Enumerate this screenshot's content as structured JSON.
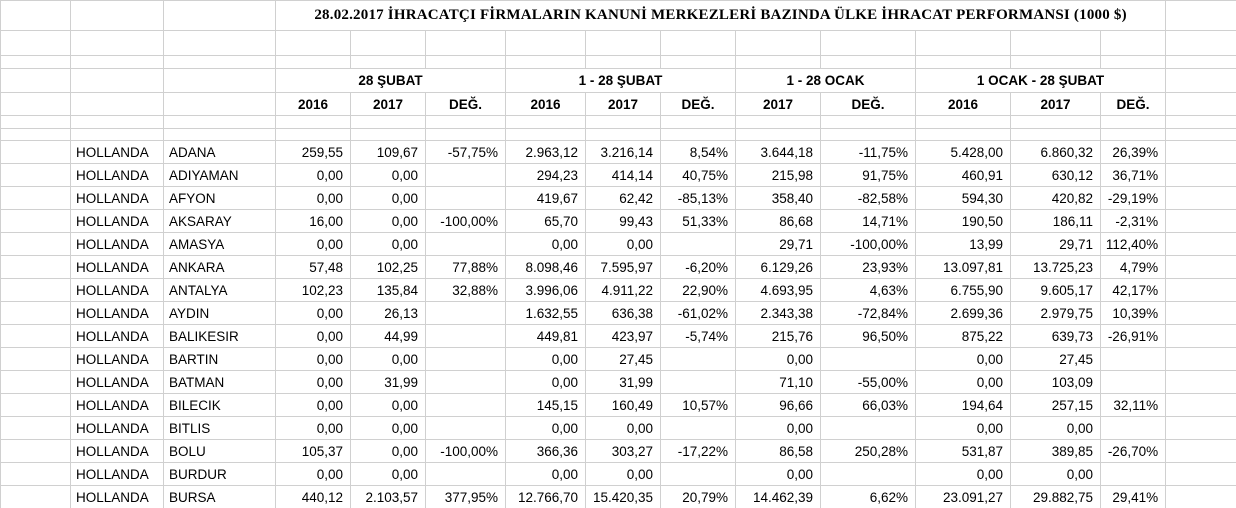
{
  "title": "28.02.2017 İHRACATÇI FİRMALARIN KANUNİ MERKEZLERİ BAZINDA ÜLKE İHRACAT PERFORMANSI  (1000 $)",
  "colors": {
    "background": "#ffffff",
    "gridline": "#d0d0d0",
    "text": "#000000"
  },
  "table": {
    "period_headers": [
      "28 ŞUBAT",
      "1 - 28 ŞUBAT",
      "1 - 28 OCAK",
      "1 OCAK  -  28 ŞUBAT"
    ],
    "year_headers": [
      "2016",
      "2017",
      "DEĞ.",
      "2016",
      "2017",
      "DEĞ.",
      "2017",
      "DEĞ.",
      "2016",
      "2017",
      "DEĞ."
    ],
    "rows": [
      {
        "country": "HOLLANDA",
        "city": "ADANA",
        "values": [
          "259,55",
          "109,67",
          "-57,75%",
          "2.963,12",
          "3.216,14",
          "8,54%",
          "3.644,18",
          "-11,75%",
          "5.428,00",
          "6.860,32",
          "26,39%"
        ]
      },
      {
        "country": "HOLLANDA",
        "city": "ADIYAMAN",
        "values": [
          "0,00",
          "0,00",
          "",
          "294,23",
          "414,14",
          "40,75%",
          "215,98",
          "91,75%",
          "460,91",
          "630,12",
          "36,71%"
        ]
      },
      {
        "country": "HOLLANDA",
        "city": "AFYON",
        "values": [
          "0,00",
          "0,00",
          "",
          "419,67",
          "62,42",
          "-85,13%",
          "358,40",
          "-82,58%",
          "594,30",
          "420,82",
          "-29,19%"
        ]
      },
      {
        "country": "HOLLANDA",
        "city": "AKSARAY",
        "values": [
          "16,00",
          "0,00",
          "-100,00%",
          "65,70",
          "99,43",
          "51,33%",
          "86,68",
          "14,71%",
          "190,50",
          "186,11",
          "-2,31%"
        ]
      },
      {
        "country": "HOLLANDA",
        "city": "AMASYA",
        "values": [
          "0,00",
          "0,00",
          "",
          "0,00",
          "0,00",
          "",
          "29,71",
          "-100,00%",
          "13,99",
          "29,71",
          "112,40%"
        ]
      },
      {
        "country": "HOLLANDA",
        "city": "ANKARA",
        "values": [
          "57,48",
          "102,25",
          "77,88%",
          "8.098,46",
          "7.595,97",
          "-6,20%",
          "6.129,26",
          "23,93%",
          "13.097,81",
          "13.725,23",
          "4,79%"
        ]
      },
      {
        "country": "HOLLANDA",
        "city": "ANTALYA",
        "values": [
          "102,23",
          "135,84",
          "32,88%",
          "3.996,06",
          "4.911,22",
          "22,90%",
          "4.693,95",
          "4,63%",
          "6.755,90",
          "9.605,17",
          "42,17%"
        ]
      },
      {
        "country": "HOLLANDA",
        "city": "AYDIN",
        "values": [
          "0,00",
          "26,13",
          "",
          "1.632,55",
          "636,38",
          "-61,02%",
          "2.343,38",
          "-72,84%",
          "2.699,36",
          "2.979,75",
          "10,39%"
        ]
      },
      {
        "country": "HOLLANDA",
        "city": "BALIKESIR",
        "values": [
          "0,00",
          "44,99",
          "",
          "449,81",
          "423,97",
          "-5,74%",
          "215,76",
          "96,50%",
          "875,22",
          "639,73",
          "-26,91%"
        ]
      },
      {
        "country": "HOLLANDA",
        "city": "BARTIN",
        "values": [
          "0,00",
          "0,00",
          "",
          "0,00",
          "27,45",
          "",
          "0,00",
          "",
          "0,00",
          "27,45",
          ""
        ]
      },
      {
        "country": "HOLLANDA",
        "city": "BATMAN",
        "values": [
          "0,00",
          "31,99",
          "",
          "0,00",
          "31,99",
          "",
          "71,10",
          "-55,00%",
          "0,00",
          "103,09",
          ""
        ]
      },
      {
        "country": "HOLLANDA",
        "city": "BILECIK",
        "values": [
          "0,00",
          "0,00",
          "",
          "145,15",
          "160,49",
          "10,57%",
          "96,66",
          "66,03%",
          "194,64",
          "257,15",
          "32,11%"
        ]
      },
      {
        "country": "HOLLANDA",
        "city": "BITLIS",
        "values": [
          "0,00",
          "0,00",
          "",
          "0,00",
          "0,00",
          "",
          "0,00",
          "",
          "0,00",
          "0,00",
          ""
        ]
      },
      {
        "country": "HOLLANDA",
        "city": "BOLU",
        "values": [
          "105,37",
          "0,00",
          "-100,00%",
          "366,36",
          "303,27",
          "-17,22%",
          "86,58",
          "250,28%",
          "531,87",
          "389,85",
          "-26,70%"
        ]
      },
      {
        "country": "HOLLANDA",
        "city": "BURDUR",
        "values": [
          "0,00",
          "0,00",
          "",
          "0,00",
          "0,00",
          "",
          "0,00",
          "",
          "0,00",
          "0,00",
          ""
        ]
      },
      {
        "country": "HOLLANDA",
        "city": "BURSA",
        "values": [
          "440,12",
          "2.103,57",
          "377,95%",
          "12.766,70",
          "15.420,35",
          "20,79%",
          "14.462,39",
          "6,62%",
          "23.091,27",
          "29.882,75",
          "29,41%"
        ]
      }
    ]
  }
}
